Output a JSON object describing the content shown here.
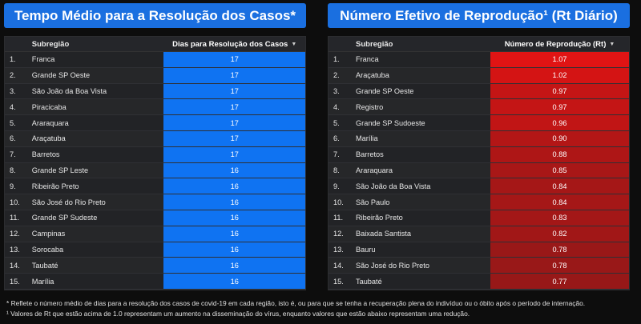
{
  "left_panel": {
    "title": "Tempo Médio para a Resolução dos Casos*",
    "title_color": "#1a6fe0",
    "header": {
      "subregion": "Subregião",
      "value": "Dias para Resolução dos Casos"
    },
    "rows": [
      {
        "rank": "1.",
        "name": "Franca",
        "value": "17"
      },
      {
        "rank": "2.",
        "name": "Grande SP Oeste",
        "value": "17"
      },
      {
        "rank": "3.",
        "name": "São João da Boa Vista",
        "value": "17"
      },
      {
        "rank": "4.",
        "name": "Piracicaba",
        "value": "17"
      },
      {
        "rank": "5.",
        "name": "Araraquara",
        "value": "17"
      },
      {
        "rank": "6.",
        "name": "Araçatuba",
        "value": "17"
      },
      {
        "rank": "7.",
        "name": "Barretos",
        "value": "17"
      },
      {
        "rank": "8.",
        "name": "Grande SP Leste",
        "value": "16"
      },
      {
        "rank": "9.",
        "name": "Ribeirão Preto",
        "value": "16"
      },
      {
        "rank": "10.",
        "name": "São José do Rio Preto",
        "value": "16"
      },
      {
        "rank": "11.",
        "name": "Grande SP Sudeste",
        "value": "16"
      },
      {
        "rank": "12.",
        "name": "Campinas",
        "value": "16"
      },
      {
        "rank": "13.",
        "name": "Sorocaba",
        "value": "16"
      },
      {
        "rank": "14.",
        "name": "Taubaté",
        "value": "16"
      },
      {
        "rank": "15.",
        "name": "Marília",
        "value": "16"
      }
    ]
  },
  "right_panel": {
    "title": "Número Efetivo de Reprodução¹ (Rt Diário)",
    "title_color": "#1a6fe0",
    "header": {
      "subregion": "Subregião",
      "value": "Número de Reprodução (Rt)"
    },
    "rows": [
      {
        "rank": "1.",
        "name": "Franca",
        "value": "1.07",
        "color": "#e01414"
      },
      {
        "rank": "2.",
        "name": "Araçatuba",
        "value": "1.02",
        "color": "#d41414"
      },
      {
        "rank": "3.",
        "name": "Grande SP Oeste",
        "value": "0.97",
        "color": "#c41515"
      },
      {
        "rank": "4.",
        "name": "Registro",
        "value": "0.97",
        "color": "#c41515"
      },
      {
        "rank": "5.",
        "name": "Grande SP Sudoeste",
        "value": "0.96",
        "color": "#c11515"
      },
      {
        "rank": "6.",
        "name": "Marília",
        "value": "0.90",
        "color": "#b31616"
      },
      {
        "rank": "7.",
        "name": "Barretos",
        "value": "0.88",
        "color": "#ae1616"
      },
      {
        "rank": "8.",
        "name": "Araraquara",
        "value": "0.85",
        "color": "#a81717"
      },
      {
        "rank": "9.",
        "name": "São João da Boa Vista",
        "value": "0.84",
        "color": "#a51717"
      },
      {
        "rank": "10.",
        "name": "São Paulo",
        "value": "0.84",
        "color": "#a51717"
      },
      {
        "rank": "11.",
        "name": "Ribeirão Preto",
        "value": "0.83",
        "color": "#a31717"
      },
      {
        "rank": "12.",
        "name": "Baixada Santista",
        "value": "0.82",
        "color": "#a11717"
      },
      {
        "rank": "13.",
        "name": "Bauru",
        "value": "0.78",
        "color": "#991818"
      },
      {
        "rank": "14.",
        "name": "São José do Rio Preto",
        "value": "0.78",
        "color": "#991818"
      },
      {
        "rank": "15.",
        "name": "Taubaté",
        "value": "0.77",
        "color": "#971818"
      }
    ]
  },
  "footnotes": {
    "line1": "* Reflete o número médio de dias para a resolução dos casos de covid-19 em cada região, isto é, ou para que se tenha a recuperação plena do indivíduo ou o óbito após o período de internação.",
    "line2": "¹ Valores de Rt que estão acima de 1.0 representam um aumento na disseminação do vírus, enquanto valores que estão abaixo representam uma redução."
  }
}
